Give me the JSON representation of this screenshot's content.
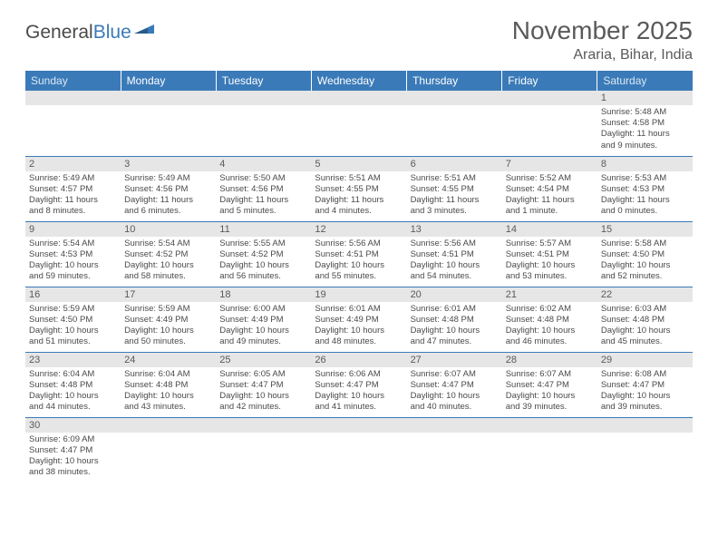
{
  "logo": {
    "word1": "General",
    "word2": "Blue"
  },
  "title": "November 2025",
  "location": "Araria, Bihar, India",
  "colors": {
    "header_bg": "#3a7ab8",
    "header_text": "#ffffff",
    "weekend_text": "#dce8f3",
    "daynum_bg": "#e6e6e6",
    "row_border": "#3a7ab8",
    "body_text": "#4a4a4a",
    "title_text": "#5a5a5a"
  },
  "day_headers": [
    "Sunday",
    "Monday",
    "Tuesday",
    "Wednesday",
    "Thursday",
    "Friday",
    "Saturday"
  ],
  "weeks": [
    [
      {
        "n": "",
        "empty": true
      },
      {
        "n": "",
        "empty": true
      },
      {
        "n": "",
        "empty": true
      },
      {
        "n": "",
        "empty": true
      },
      {
        "n": "",
        "empty": true
      },
      {
        "n": "",
        "empty": true
      },
      {
        "n": "1",
        "sunrise": "Sunrise: 5:48 AM",
        "sunset": "Sunset: 4:58 PM",
        "daylight1": "Daylight: 11 hours",
        "daylight2": "and 9 minutes."
      }
    ],
    [
      {
        "n": "2",
        "sunrise": "Sunrise: 5:49 AM",
        "sunset": "Sunset: 4:57 PM",
        "daylight1": "Daylight: 11 hours",
        "daylight2": "and 8 minutes."
      },
      {
        "n": "3",
        "sunrise": "Sunrise: 5:49 AM",
        "sunset": "Sunset: 4:56 PM",
        "daylight1": "Daylight: 11 hours",
        "daylight2": "and 6 minutes."
      },
      {
        "n": "4",
        "sunrise": "Sunrise: 5:50 AM",
        "sunset": "Sunset: 4:56 PM",
        "daylight1": "Daylight: 11 hours",
        "daylight2": "and 5 minutes."
      },
      {
        "n": "5",
        "sunrise": "Sunrise: 5:51 AM",
        "sunset": "Sunset: 4:55 PM",
        "daylight1": "Daylight: 11 hours",
        "daylight2": "and 4 minutes."
      },
      {
        "n": "6",
        "sunrise": "Sunrise: 5:51 AM",
        "sunset": "Sunset: 4:55 PM",
        "daylight1": "Daylight: 11 hours",
        "daylight2": "and 3 minutes."
      },
      {
        "n": "7",
        "sunrise": "Sunrise: 5:52 AM",
        "sunset": "Sunset: 4:54 PM",
        "daylight1": "Daylight: 11 hours",
        "daylight2": "and 1 minute."
      },
      {
        "n": "8",
        "sunrise": "Sunrise: 5:53 AM",
        "sunset": "Sunset: 4:53 PM",
        "daylight1": "Daylight: 11 hours",
        "daylight2": "and 0 minutes."
      }
    ],
    [
      {
        "n": "9",
        "sunrise": "Sunrise: 5:54 AM",
        "sunset": "Sunset: 4:53 PM",
        "daylight1": "Daylight: 10 hours",
        "daylight2": "and 59 minutes."
      },
      {
        "n": "10",
        "sunrise": "Sunrise: 5:54 AM",
        "sunset": "Sunset: 4:52 PM",
        "daylight1": "Daylight: 10 hours",
        "daylight2": "and 58 minutes."
      },
      {
        "n": "11",
        "sunrise": "Sunrise: 5:55 AM",
        "sunset": "Sunset: 4:52 PM",
        "daylight1": "Daylight: 10 hours",
        "daylight2": "and 56 minutes."
      },
      {
        "n": "12",
        "sunrise": "Sunrise: 5:56 AM",
        "sunset": "Sunset: 4:51 PM",
        "daylight1": "Daylight: 10 hours",
        "daylight2": "and 55 minutes."
      },
      {
        "n": "13",
        "sunrise": "Sunrise: 5:56 AM",
        "sunset": "Sunset: 4:51 PM",
        "daylight1": "Daylight: 10 hours",
        "daylight2": "and 54 minutes."
      },
      {
        "n": "14",
        "sunrise": "Sunrise: 5:57 AM",
        "sunset": "Sunset: 4:51 PM",
        "daylight1": "Daylight: 10 hours",
        "daylight2": "and 53 minutes."
      },
      {
        "n": "15",
        "sunrise": "Sunrise: 5:58 AM",
        "sunset": "Sunset: 4:50 PM",
        "daylight1": "Daylight: 10 hours",
        "daylight2": "and 52 minutes."
      }
    ],
    [
      {
        "n": "16",
        "sunrise": "Sunrise: 5:59 AM",
        "sunset": "Sunset: 4:50 PM",
        "daylight1": "Daylight: 10 hours",
        "daylight2": "and 51 minutes."
      },
      {
        "n": "17",
        "sunrise": "Sunrise: 5:59 AM",
        "sunset": "Sunset: 4:49 PM",
        "daylight1": "Daylight: 10 hours",
        "daylight2": "and 50 minutes."
      },
      {
        "n": "18",
        "sunrise": "Sunrise: 6:00 AM",
        "sunset": "Sunset: 4:49 PM",
        "daylight1": "Daylight: 10 hours",
        "daylight2": "and 49 minutes."
      },
      {
        "n": "19",
        "sunrise": "Sunrise: 6:01 AM",
        "sunset": "Sunset: 4:49 PM",
        "daylight1": "Daylight: 10 hours",
        "daylight2": "and 48 minutes."
      },
      {
        "n": "20",
        "sunrise": "Sunrise: 6:01 AM",
        "sunset": "Sunset: 4:48 PM",
        "daylight1": "Daylight: 10 hours",
        "daylight2": "and 47 minutes."
      },
      {
        "n": "21",
        "sunrise": "Sunrise: 6:02 AM",
        "sunset": "Sunset: 4:48 PM",
        "daylight1": "Daylight: 10 hours",
        "daylight2": "and 46 minutes."
      },
      {
        "n": "22",
        "sunrise": "Sunrise: 6:03 AM",
        "sunset": "Sunset: 4:48 PM",
        "daylight1": "Daylight: 10 hours",
        "daylight2": "and 45 minutes."
      }
    ],
    [
      {
        "n": "23",
        "sunrise": "Sunrise: 6:04 AM",
        "sunset": "Sunset: 4:48 PM",
        "daylight1": "Daylight: 10 hours",
        "daylight2": "and 44 minutes."
      },
      {
        "n": "24",
        "sunrise": "Sunrise: 6:04 AM",
        "sunset": "Sunset: 4:48 PM",
        "daylight1": "Daylight: 10 hours",
        "daylight2": "and 43 minutes."
      },
      {
        "n": "25",
        "sunrise": "Sunrise: 6:05 AM",
        "sunset": "Sunset: 4:47 PM",
        "daylight1": "Daylight: 10 hours",
        "daylight2": "and 42 minutes."
      },
      {
        "n": "26",
        "sunrise": "Sunrise: 6:06 AM",
        "sunset": "Sunset: 4:47 PM",
        "daylight1": "Daylight: 10 hours",
        "daylight2": "and 41 minutes."
      },
      {
        "n": "27",
        "sunrise": "Sunrise: 6:07 AM",
        "sunset": "Sunset: 4:47 PM",
        "daylight1": "Daylight: 10 hours",
        "daylight2": "and 40 minutes."
      },
      {
        "n": "28",
        "sunrise": "Sunrise: 6:07 AM",
        "sunset": "Sunset: 4:47 PM",
        "daylight1": "Daylight: 10 hours",
        "daylight2": "and 39 minutes."
      },
      {
        "n": "29",
        "sunrise": "Sunrise: 6:08 AM",
        "sunset": "Sunset: 4:47 PM",
        "daylight1": "Daylight: 10 hours",
        "daylight2": "and 39 minutes."
      }
    ],
    [
      {
        "n": "30",
        "sunrise": "Sunrise: 6:09 AM",
        "sunset": "Sunset: 4:47 PM",
        "daylight1": "Daylight: 10 hours",
        "daylight2": "and 38 minutes."
      },
      {
        "n": "",
        "empty": true
      },
      {
        "n": "",
        "empty": true
      },
      {
        "n": "",
        "empty": true
      },
      {
        "n": "",
        "empty": true
      },
      {
        "n": "",
        "empty": true
      },
      {
        "n": "",
        "empty": true
      }
    ]
  ]
}
